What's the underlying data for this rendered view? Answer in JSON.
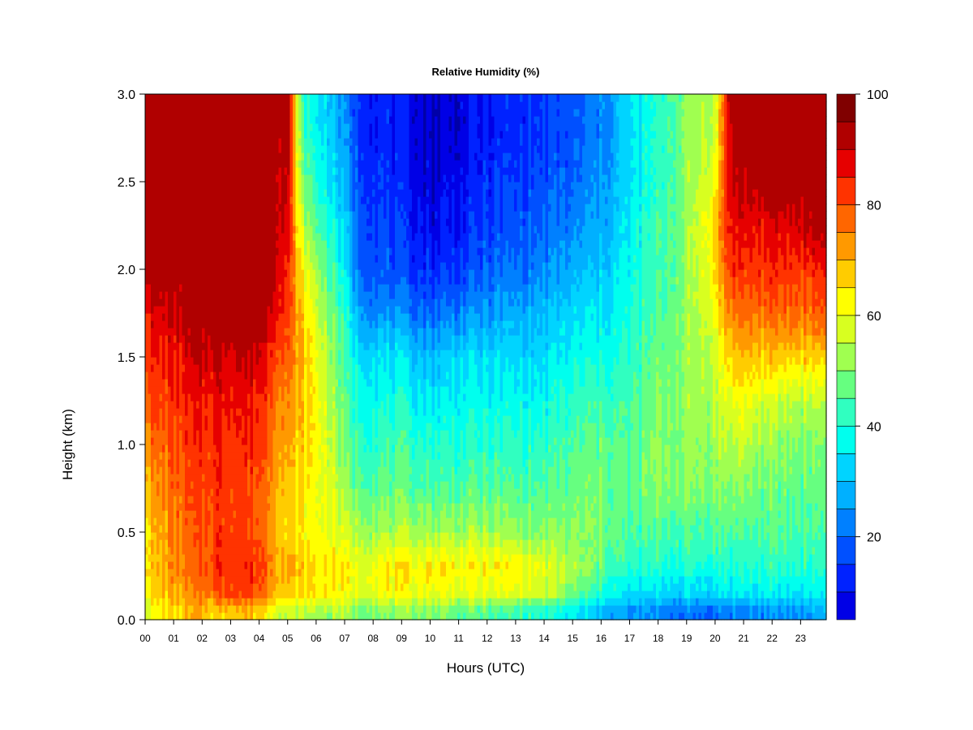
{
  "chart_data": {
    "type": "heatmap",
    "title": "Relative Humidity (%)",
    "xlabel": "Hours (UTC)",
    "ylabel": "Height (km)",
    "x_ticks": [
      "00",
      "01",
      "02",
      "03",
      "04",
      "05",
      "06",
      "07",
      "08",
      "09",
      "10",
      "11",
      "12",
      "13",
      "14",
      "15",
      "16",
      "17",
      "18",
      "19",
      "20",
      "21",
      "22",
      "23"
    ],
    "y_ticks": [
      "0.0",
      "0.5",
      "1.0",
      "1.5",
      "2.0",
      "2.5",
      "3.0"
    ],
    "xlim": [
      0,
      23.9
    ],
    "ylim": [
      0,
      3.0
    ],
    "colorbar": {
      "ticks": [
        "20",
        "40",
        "60",
        "80",
        "100"
      ],
      "range": [
        5,
        100
      ],
      "levels": [
        5,
        10,
        15,
        20,
        25,
        30,
        35,
        40,
        45,
        50,
        55,
        60,
        65,
        70,
        75,
        80,
        85,
        90,
        95,
        100
      ],
      "colors": [
        "#00006e",
        "#0000a8",
        "#0000e6",
        "#0022ff",
        "#0050ff",
        "#0080ff",
        "#00b0ff",
        "#00d4ff",
        "#00ffee",
        "#30ffc0",
        "#66ff80",
        "#a0ff50",
        "#d8ff20",
        "#ffff00",
        "#ffcc00",
        "#ff9900",
        "#ff6600",
        "#ff3300",
        "#e60000",
        "#b00000",
        "#800000"
      ]
    },
    "heights_km": [
      0.05,
      0.15,
      0.3,
      0.5,
      0.75,
      1.0,
      1.25,
      1.5,
      1.75,
      2.0,
      2.25,
      2.5,
      2.75,
      3.0
    ],
    "profiles": [
      {
        "hour": 0,
        "rh": [
          65,
          70,
          72,
          70,
          75,
          80,
          85,
          88,
          92,
          100,
          100,
          100,
          100,
          100
        ]
      },
      {
        "hour": 1,
        "rh": [
          70,
          75,
          78,
          80,
          82,
          85,
          88,
          90,
          95,
          100,
          100,
          100,
          100,
          100
        ]
      },
      {
        "hour": 2,
        "rh": [
          75,
          80,
          82,
          84,
          86,
          88,
          90,
          95,
          100,
          100,
          100,
          100,
          100,
          100
        ]
      },
      {
        "hour": 2.5,
        "rh": [
          70,
          85,
          88,
          88,
          88,
          90,
          92,
          96,
          100,
          100,
          100,
          100,
          100,
          100
        ]
      },
      {
        "hour": 3,
        "rh": [
          75,
          88,
          90,
          88,
          88,
          90,
          92,
          96,
          100,
          100,
          100,
          100,
          100,
          100
        ]
      },
      {
        "hour": 4,
        "rh": [
          72,
          85,
          88,
          85,
          85,
          88,
          90,
          95,
          100,
          100,
          100,
          100,
          100,
          100
        ]
      },
      {
        "hour": 4.5,
        "rh": [
          65,
          78,
          80,
          78,
          80,
          82,
          85,
          90,
          96,
          100,
          100,
          100,
          100,
          100
        ]
      },
      {
        "hour": 5,
        "rh": [
          60,
          72,
          75,
          70,
          72,
          75,
          78,
          82,
          86,
          88,
          92,
          95,
          98,
          100
        ]
      },
      {
        "hour": 5.5,
        "rh": [
          60,
          70,
          72,
          68,
          70,
          72,
          72,
          75,
          72,
          68,
          62,
          55,
          50,
          48
        ]
      },
      {
        "hour": 6,
        "rh": [
          58,
          68,
          70,
          66,
          66,
          68,
          68,
          66,
          62,
          58,
          50,
          46,
          42,
          40
        ]
      },
      {
        "hour": 6.5,
        "rh": [
          58,
          68,
          70,
          66,
          64,
          62,
          60,
          58,
          55,
          50,
          45,
          40,
          38,
          36
        ]
      },
      {
        "hour": 7,
        "rh": [
          58,
          66,
          68,
          62,
          56,
          52,
          50,
          48,
          45,
          40,
          36,
          32,
          30,
          28
        ]
      },
      {
        "hour": 7.5,
        "rh": [
          55,
          64,
          66,
          58,
          52,
          48,
          45,
          40,
          32,
          26,
          24,
          22,
          20,
          20
        ]
      },
      {
        "hour": 8,
        "rh": [
          55,
          66,
          68,
          58,
          52,
          48,
          44,
          40,
          30,
          24,
          22,
          20,
          18,
          18
        ]
      },
      {
        "hour": 9,
        "rh": [
          55,
          66,
          68,
          58,
          52,
          48,
          44,
          38,
          28,
          20,
          18,
          16,
          15,
          15
        ]
      },
      {
        "hour": 10,
        "rh": [
          55,
          66,
          70,
          58,
          50,
          46,
          40,
          35,
          25,
          18,
          14,
          12,
          10,
          10
        ]
      },
      {
        "hour": 11,
        "rh": [
          52,
          64,
          68,
          58,
          50,
          46,
          42,
          38,
          28,
          20,
          16,
          14,
          12,
          12
        ]
      },
      {
        "hour": 12,
        "rh": [
          50,
          64,
          68,
          58,
          50,
          46,
          42,
          38,
          30,
          24,
          20,
          18,
          16,
          16
        ]
      },
      {
        "hour": 13,
        "rh": [
          48,
          64,
          68,
          56,
          50,
          46,
          42,
          38,
          32,
          26,
          22,
          20,
          18,
          18
        ]
      },
      {
        "hour": 14,
        "rh": [
          45,
          62,
          64,
          55,
          50,
          46,
          42,
          38,
          34,
          28,
          24,
          22,
          20,
          20
        ]
      },
      {
        "hour": 15,
        "rh": [
          40,
          52,
          58,
          55,
          52,
          50,
          46,
          42,
          38,
          32,
          28,
          24,
          22,
          22
        ]
      },
      {
        "hour": 16,
        "rh": [
          35,
          45,
          52,
          54,
          54,
          52,
          48,
          44,
          40,
          36,
          32,
          30,
          28,
          28
        ]
      },
      {
        "hour": 17,
        "rh": [
          28,
          38,
          45,
          48,
          50,
          50,
          48,
          46,
          44,
          42,
          40,
          38,
          38,
          38
        ]
      },
      {
        "hour": 18,
        "rh": [
          28,
          38,
          45,
          50,
          55,
          55,
          54,
          52,
          50,
          48,
          48,
          46,
          46,
          46
        ]
      },
      {
        "hour": 19,
        "rh": [
          25,
          38,
          45,
          50,
          55,
          56,
          56,
          56,
          56,
          56,
          56,
          56,
          56,
          56
        ]
      },
      {
        "hour": 20,
        "rh": [
          25,
          38,
          45,
          50,
          55,
          58,
          60,
          62,
          66,
          70,
          72,
          66,
          62,
          60
        ]
      },
      {
        "hour": 20.5,
        "rh": [
          28,
          40,
          46,
          50,
          55,
          60,
          65,
          72,
          80,
          88,
          92,
          95,
          96,
          98
        ]
      },
      {
        "hour": 21,
        "rh": [
          28,
          40,
          46,
          50,
          55,
          60,
          66,
          74,
          82,
          88,
          92,
          96,
          100,
          100
        ]
      },
      {
        "hour": 22,
        "rh": [
          28,
          40,
          46,
          50,
          52,
          56,
          62,
          72,
          82,
          88,
          92,
          100,
          100,
          100
        ]
      },
      {
        "hour": 23,
        "rh": [
          30,
          40,
          46,
          50,
          52,
          55,
          60,
          72,
          82,
          88,
          95,
          100,
          100,
          100
        ]
      },
      {
        "hour": 23.9,
        "rh": [
          35,
          42,
          46,
          50,
          52,
          55,
          60,
          72,
          85,
          90,
          100,
          100,
          100,
          100
        ]
      }
    ]
  }
}
